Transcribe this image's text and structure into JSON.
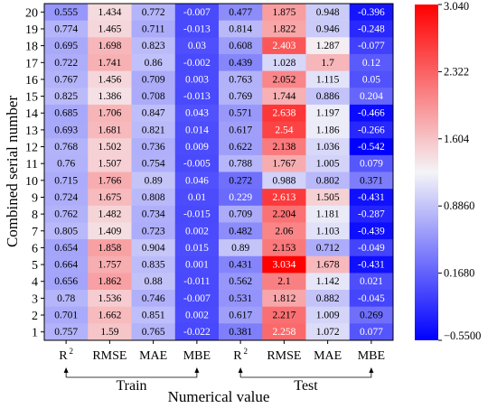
{
  "chart_data": {
    "type": "heatmap",
    "ylabel": "Combined serial number",
    "xlabel": "Numerical value",
    "columns": [
      "R 2",
      "RMSE",
      "MAE",
      "MBE",
      "R 2",
      "RMSE",
      "MAE",
      "MBE"
    ],
    "groups": [
      {
        "label": "Train",
        "span": [
          0,
          3
        ]
      },
      {
        "label": "Test",
        "span": [
          4,
          7
        ]
      }
    ],
    "rows": [
      20,
      19,
      18,
      17,
      16,
      15,
      14,
      13,
      12,
      11,
      10,
      9,
      8,
      7,
      6,
      5,
      4,
      3,
      2,
      1
    ],
    "values": [
      [
        0.555,
        1.434,
        0.772,
        -0.007,
        0.477,
        1.875,
        0.948,
        -0.396
      ],
      [
        0.774,
        1.465,
        0.711,
        -0.013,
        0.814,
        1.822,
        0.946,
        -0.248
      ],
      [
        0.695,
        1.698,
        0.823,
        0.03,
        0.608,
        2.403,
        1.287,
        -0.077
      ],
      [
        0.722,
        1.741,
        0.86,
        -0.002,
        0.439,
        1.028,
        1.7,
        0.12
      ],
      [
        0.767,
        1.456,
        0.709,
        0.003,
        0.763,
        2.052,
        1.115,
        0.05
      ],
      [
        0.825,
        1.386,
        0.708,
        -0.013,
        0.769,
        1.744,
        0.886,
        0.204
      ],
      [
        0.685,
        1.706,
        0.847,
        0.043,
        0.571,
        2.638,
        1.197,
        -0.466
      ],
      [
        0.693,
        1.681,
        0.821,
        0.014,
        0.617,
        2.54,
        1.186,
        -0.266
      ],
      [
        0.768,
        1.502,
        0.736,
        0.009,
        0.622,
        2.138,
        1.036,
        -0.542
      ],
      [
        0.76,
        1.507,
        0.754,
        -0.005,
        0.788,
        1.767,
        1.005,
        0.079
      ],
      [
        0.715,
        1.766,
        0.89,
        0.046,
        0.272,
        0.988,
        0.802,
        0.371
      ],
      [
        0.724,
        1.675,
        0.808,
        0.01,
        0.229,
        2.613,
        1.505,
        -0.431
      ],
      [
        0.762,
        1.482,
        0.734,
        -0.015,
        0.709,
        2.204,
        1.181,
        -0.287
      ],
      [
        0.805,
        1.409,
        0.723,
        0.002,
        0.482,
        2.06,
        1.103,
        -0.439
      ],
      [
        0.654,
        1.858,
        0.904,
        0.015,
        0.89,
        2.153,
        0.712,
        -0.049
      ],
      [
        0.664,
        1.757,
        0.835,
        0.001,
        0.431,
        3.034,
        1.678,
        -0.431
      ],
      [
        0.656,
        1.862,
        0.88,
        -0.011,
        0.562,
        2.1,
        1.142,
        0.021
      ],
      [
        0.78,
        1.536,
        0.746,
        -0.007,
        0.531,
        1.812,
        0.882,
        -0.045
      ],
      [
        0.701,
        1.662,
        0.851,
        0.002,
        0.617,
        2.217,
        1.009,
        0.269
      ],
      [
        0.757,
        1.59,
        0.765,
        -0.022,
        0.381,
        2.258,
        1.072,
        0.077
      ]
    ],
    "value_labels": [
      [
        "0.555",
        "1.434",
        "0.772",
        "-0.007",
        "0.477",
        "1.875",
        "0.948",
        "-0.396"
      ],
      [
        "0.774",
        "1.465",
        "0.711",
        "-0.013",
        "0.814",
        "1.822",
        "0.946",
        "-0.248"
      ],
      [
        "0.695",
        "1.698",
        "0.823",
        "0.03",
        "0.608",
        "2.403",
        "1.287",
        "-0.077"
      ],
      [
        "0.722",
        "1.741",
        "0.86",
        "-0.002",
        "0.439",
        "1.028",
        "1.7",
        "0.12"
      ],
      [
        "0.767",
        "1.456",
        "0.709",
        "0.003",
        "0.763",
        "2.052",
        "1.115",
        "0.05"
      ],
      [
        "0.825",
        "1.386",
        "0.708",
        "-0.013",
        "0.769",
        "1.744",
        "0.886",
        "0.204"
      ],
      [
        "0.685",
        "1.706",
        "0.847",
        "0.043",
        "0.571",
        "2.638",
        "1.197",
        "-0.466"
      ],
      [
        "0.693",
        "1.681",
        "0.821",
        "0.014",
        "0.617",
        "2.54",
        "1.186",
        "-0.266"
      ],
      [
        "0.768",
        "1.502",
        "0.736",
        "0.009",
        "0.622",
        "2.138",
        "1.036",
        "-0.542"
      ],
      [
        "0.76",
        "1.507",
        "0.754",
        "-0.005",
        "0.788",
        "1.767",
        "1.005",
        "0.079"
      ],
      [
        "0.715",
        "1.766",
        "0.89",
        "0.046",
        "0.272",
        "0.988",
        "0.802",
        "0.371"
      ],
      [
        "0.724",
        "1.675",
        "0.808",
        "0.01",
        "0.229",
        "2.613",
        "1.505",
        "-0.431"
      ],
      [
        "0.762",
        "1.482",
        "0.734",
        "-0.015",
        "0.709",
        "2.204",
        "1.181",
        "-0.287"
      ],
      [
        "0.805",
        "1.409",
        "0.723",
        "0.002",
        "0.482",
        "2.06",
        "1.103",
        "-0.439"
      ],
      [
        "0.654",
        "1.858",
        "0.904",
        "0.015",
        "0.89",
        "2.153",
        "0.712",
        "-0.049"
      ],
      [
        "0.664",
        "1.757",
        "0.835",
        "0.001",
        "0.431",
        "3.034",
        "1.678",
        "-0.431"
      ],
      [
        "0.656",
        "1.862",
        "0.88",
        "-0.011",
        "0.562",
        "2.1",
        "1.142",
        "0.021"
      ],
      [
        "0.78",
        "1.536",
        "0.746",
        "-0.007",
        "0.531",
        "1.812",
        "0.882",
        "-0.045"
      ],
      [
        "0.701",
        "1.662",
        "0.851",
        "0.002",
        "0.617",
        "2.217",
        "1.009",
        "0.269"
      ],
      [
        "0.757",
        "1.59",
        "0.765",
        "-0.022",
        "0.381",
        "2.258",
        "1.072",
        "0.077"
      ]
    ],
    "colorbar": {
      "min": -0.55,
      "max": 3.04,
      "colors": {
        "low": "#0000ff",
        "mid": "#f4f4f8",
        "high": "#ff0000"
      },
      "ticks": [
        "3.040",
        "2.322",
        "1.604",
        "0.8860",
        "0.1680",
        "−0.5500"
      ],
      "tick_values": [
        3.04,
        2.322,
        1.604,
        0.886,
        0.168,
        -0.55
      ]
    }
  }
}
